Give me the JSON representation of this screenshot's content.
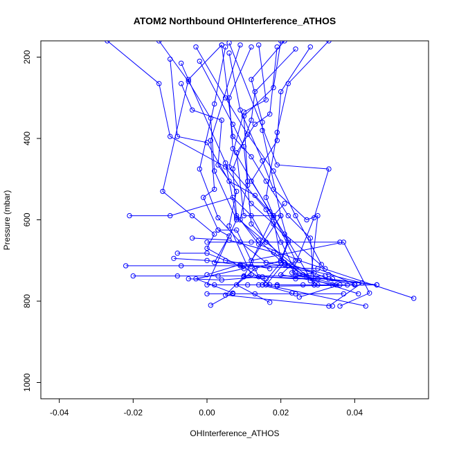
{
  "chart_data": {
    "type": "line",
    "title": "ATOM2 Northbound OHInterference_ATHOS",
    "xlabel": "OHInterference_ATHOS",
    "ylabel": "Pressure (mbar)",
    "xlim": [
      -0.045,
      0.06
    ],
    "ylim": [
      1040,
      160
    ],
    "y_reversed": true,
    "x_ticks": [
      -0.04,
      -0.02,
      0.0,
      0.02,
      0.04
    ],
    "x_tick_labels": [
      "-0.04",
      "-0.02",
      "0.00",
      "0.02",
      "0.04"
    ],
    "y_ticks": [
      200,
      400,
      600,
      800,
      1000
    ],
    "y_tick_labels": [
      "200",
      "400",
      "600",
      "800",
      "1000"
    ],
    "series_color": "#0000ff",
    "marker": "open-circle",
    "grid": false,
    "legend": "none",
    "series": [
      {
        "x": [
          -0.027,
          -0.013,
          -0.01,
          0.005,
          0.012,
          0.018,
          0.022,
          0.02,
          0.027,
          0.036,
          0.025
        ],
        "y": [
          160,
          265,
          395,
          470,
          560,
          610,
          650,
          700,
          740,
          760,
          790
        ]
      },
      {
        "x": [
          0.004,
          -0.005,
          -0.012,
          -0.004,
          0.002,
          0.0,
          0.01,
          -0.003,
          0.007,
          0.001
        ],
        "y": [
          170,
          255,
          530,
          590,
          635,
          670,
          720,
          745,
          780,
          810
        ]
      },
      {
        "x": [
          -0.01,
          -0.008,
          0.0,
          0.006,
          0.013,
          0.018,
          0.024,
          0.02,
          0.035,
          0.015
        ],
        "y": [
          205,
          395,
          410,
          505,
          540,
          590,
          700,
          735,
          760,
          760
        ]
      },
      {
        "x": [
          0.005,
          0.002,
          -0.002,
          0.003,
          0.009,
          0.016,
          0.029,
          0.024,
          0.046,
          0.019
        ],
        "y": [
          175,
          315,
          475,
          595,
          655,
          705,
          730,
          738,
          760,
          763
        ]
      },
      {
        "x": [
          0.024,
          0.013,
          0.012,
          0.007,
          0.008,
          0.014,
          0.021,
          0.033,
          0.042,
          0.033
        ],
        "y": [
          180,
          285,
          355,
          475,
          590,
          650,
          710,
          735,
          755,
          812
        ]
      },
      {
        "x": [
          0.019,
          0.017,
          0.013,
          0.008,
          0.01,
          0.02,
          0.012,
          0.037,
          0.044,
          0.036
        ],
        "y": [
          175,
          340,
          365,
          435,
          590,
          590,
          700,
          655,
          780,
          812
        ]
      },
      {
        "x": [
          0.009,
          0.001,
          0.002,
          -0.001,
          0.003,
          0.006,
          0.002,
          0.021,
          0.016,
          0.043
        ],
        "y": [
          170,
          405,
          525,
          545,
          625,
          640,
          705,
          705,
          760,
          812
        ]
      },
      {
        "x": [
          -0.007,
          -0.004,
          0.004,
          0.003,
          0.008,
          0.006,
          0.012,
          0.01,
          0.005,
          0.034
        ],
        "y": [
          265,
          330,
          355,
          465,
          530,
          615,
          735,
          740,
          785,
          812
        ]
      },
      {
        "x": [
          0.012,
          0.006,
          0.007,
          0.017,
          0.018,
          0.02,
          0.013,
          0.008,
          0.017
        ],
        "y": [
          175,
          300,
          425,
          580,
          595,
          700,
          720,
          760,
          803
        ]
      },
      {
        "x": [
          0.021,
          0.012,
          0.015,
          0.015,
          0.02,
          0.022,
          0.02,
          0.015,
          0.023
        ],
        "y": [
          160,
          255,
          360,
          380,
          590,
          655,
          705,
          760,
          780
        ]
      },
      {
        "x": [
          0.02,
          0.018,
          0.01,
          0.011,
          0.009,
          0.014,
          0.025,
          0.056
        ],
        "y": [
          160,
          275,
          345,
          505,
          600,
          660,
          700,
          793
        ]
      },
      {
        "x": [
          -0.013,
          -0.005,
          0.001,
          0.002,
          0.008,
          0.0,
          0.014,
          0.019
        ],
        "y": [
          160,
          260,
          350,
          480,
          600,
          760,
          760,
          760
        ]
      },
      {
        "x": [
          0.014,
          0.016,
          0.01,
          0.006,
          0.016,
          0.023,
          0.033,
          0.046
        ],
        "y": [
          170,
          305,
          335,
          470,
          575,
          710,
          745,
          760
        ]
      },
      {
        "x": [
          0.004,
          0.007,
          0.012,
          0.016,
          0.022,
          0.028,
          0.029
        ],
        "y": [
          170,
          395,
          445,
          505,
          590,
          645,
          760
        ]
      },
      {
        "x": [
          0.033,
          0.022,
          0.019,
          0.016,
          0.018,
          0.029,
          0.038
        ],
        "y": [
          160,
          265,
          385,
          545,
          590,
          760,
          760
        ]
      },
      {
        "x": [
          -0.003,
          0.005,
          0.011,
          0.018,
          0.024,
          0.031
        ],
        "y": [
          175,
          300,
          390,
          480,
          590,
          710
        ]
      },
      {
        "x": [
          0.006,
          0.009,
          0.015,
          0.018,
          0.027,
          0.03,
          0.028
        ],
        "y": [
          190,
          330,
          455,
          525,
          600,
          590,
          750
        ]
      },
      {
        "x": [
          -0.002,
          0.007,
          0.01,
          0.011,
          0.012,
          0.024,
          0.04
        ],
        "y": [
          210,
          365,
          420,
          515,
          610,
          730,
          760
        ]
      },
      {
        "x": [
          0.028,
          0.02,
          0.019,
          0.012,
          0.021,
          0.032
        ],
        "y": [
          175,
          285,
          405,
          505,
          635,
          720
        ]
      },
      {
        "x": [
          -0.007,
          0.005,
          0.008,
          0.016,
          0.03
        ],
        "y": [
          215,
          460,
          595,
          655,
          760
        ]
      },
      {
        "x": [
          0.006,
          0.019,
          0.033,
          0.029,
          0.023,
          0.041
        ],
        "y": [
          165,
          465,
          475,
          595,
          730,
          782
        ]
      },
      {
        "x": [
          -0.021,
          -0.01,
          0.007,
          0.012,
          0.016
        ],
        "y": [
          590,
          590,
          545,
          590,
          655
        ]
      },
      {
        "x": [
          -0.022,
          -0.007,
          0.009,
          0.01,
          0.022
        ],
        "y": [
          713,
          713,
          713,
          713,
          713
        ]
      },
      {
        "x": [
          -0.02,
          -0.008,
          0.003,
          0.01,
          0.032
        ],
        "y": [
          738,
          738,
          738,
          738,
          738
        ]
      },
      {
        "x": [
          -0.009,
          0.0,
          0.012,
          0.03,
          0.04
        ],
        "y": [
          695,
          700,
          715,
          720,
          758
        ]
      },
      {
        "x": [
          0.0,
          0.007,
          0.013,
          0.024,
          0.037
        ],
        "y": [
          782,
          782,
          782,
          782,
          782
        ]
      },
      {
        "x": [
          -0.005,
          0.004,
          0.015,
          0.024,
          0.034
        ],
        "y": [
          745,
          748,
          740,
          745,
          745
        ]
      },
      {
        "x": [
          0.0,
          0.012,
          0.02,
          0.036
        ],
        "y": [
          655,
          655,
          655,
          655
        ]
      },
      {
        "x": [
          -0.008,
          0.0,
          0.005,
          0.017
        ],
        "y": [
          682,
          682,
          700,
          720
        ]
      },
      {
        "x": [
          0.002,
          0.011,
          0.019,
          0.034
        ],
        "y": [
          760,
          760,
          760,
          760
        ]
      },
      {
        "x": [
          0.003,
          0.008,
          0.014,
          0.03
        ],
        "y": [
          625,
          625,
          740,
          745
        ]
      },
      {
        "x": [
          -0.004,
          0.006,
          0.018,
          0.026
        ],
        "y": [
          645,
          650,
          680,
          735
        ]
      },
      {
        "x": [
          0.0,
          0.009,
          0.017,
          0.026
        ],
        "y": [
          735,
          710,
          760,
          760
        ]
      },
      {
        "x": [
          0.021,
          0.018,
          0.01,
          0.016
        ],
        "y": [
          560,
          590,
          740,
          745
        ]
      }
    ]
  }
}
